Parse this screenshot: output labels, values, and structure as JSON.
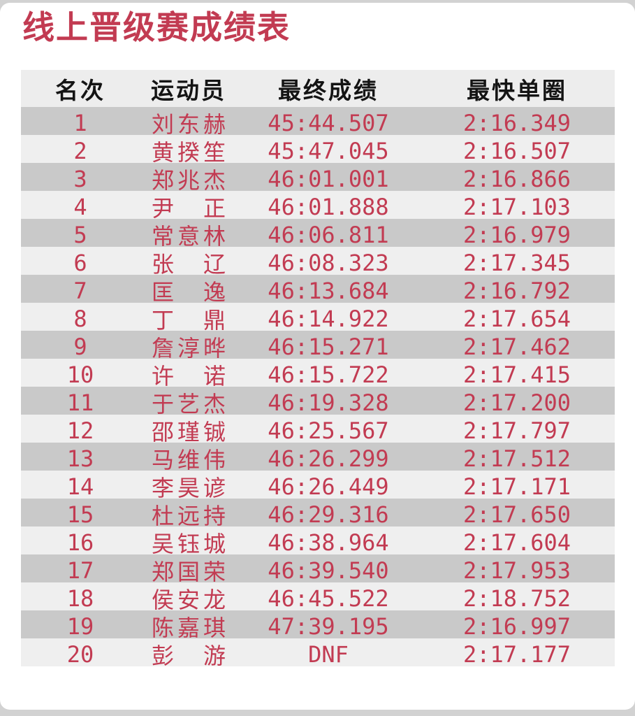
{
  "page_title": "线上晋级赛成绩表",
  "colors": {
    "accent_red": "#c23b52",
    "stripe_dark": "#c9c9c9",
    "stripe_light": "#efefef",
    "header_bg": "#ededed",
    "page_edge": "#d2d2d2",
    "header_text": "#141414"
  },
  "chart_data": {
    "type": "table",
    "title": "线上晋级赛成绩表",
    "columns": [
      "名次",
      "运动员",
      "最终成绩",
      "最快单圈"
    ],
    "rows": [
      [
        "1",
        "刘东赫",
        "45:44.507",
        "2:16.349"
      ],
      [
        "2",
        "黄揆笙",
        "45:47.045",
        "2:16.507"
      ],
      [
        "3",
        "郑兆杰",
        "46:01.001",
        "2:16.866"
      ],
      [
        "4",
        "尹正",
        "46:01.888",
        "2:17.103"
      ],
      [
        "5",
        "常意林",
        "46:06.811",
        "2:16.979"
      ],
      [
        "6",
        "张辽",
        "46:08.323",
        "2:17.345"
      ],
      [
        "7",
        "匡逸",
        "46:13.684",
        "2:16.792"
      ],
      [
        "8",
        "丁鼎",
        "46:14.922",
        "2:17.654"
      ],
      [
        "9",
        "詹淳晔",
        "46:15.271",
        "2:17.462"
      ],
      [
        "10",
        "许诺",
        "46:15.722",
        "2:17.415"
      ],
      [
        "11",
        "于艺杰",
        "46:19.328",
        "2:17.200"
      ],
      [
        "12",
        "邵瑾铖",
        "46:25.567",
        "2:17.797"
      ],
      [
        "13",
        "马维伟",
        "46:26.299",
        "2:17.512"
      ],
      [
        "14",
        "李昊谚",
        "46:26.449",
        "2:17.171"
      ],
      [
        "15",
        "杜远持",
        "46:29.316",
        "2:17.650"
      ],
      [
        "16",
        "吴钰城",
        "46:38.964",
        "2:17.604"
      ],
      [
        "17",
        "郑国荣",
        "46:39.540",
        "2:17.953"
      ],
      [
        "18",
        "侯安龙",
        "46:45.522",
        "2:18.752"
      ],
      [
        "19",
        "陈嘉琪",
        "47:39.195",
        "2:16.997"
      ],
      [
        "20",
        "彭游",
        "DNF",
        "2:17.177"
      ]
    ]
  }
}
